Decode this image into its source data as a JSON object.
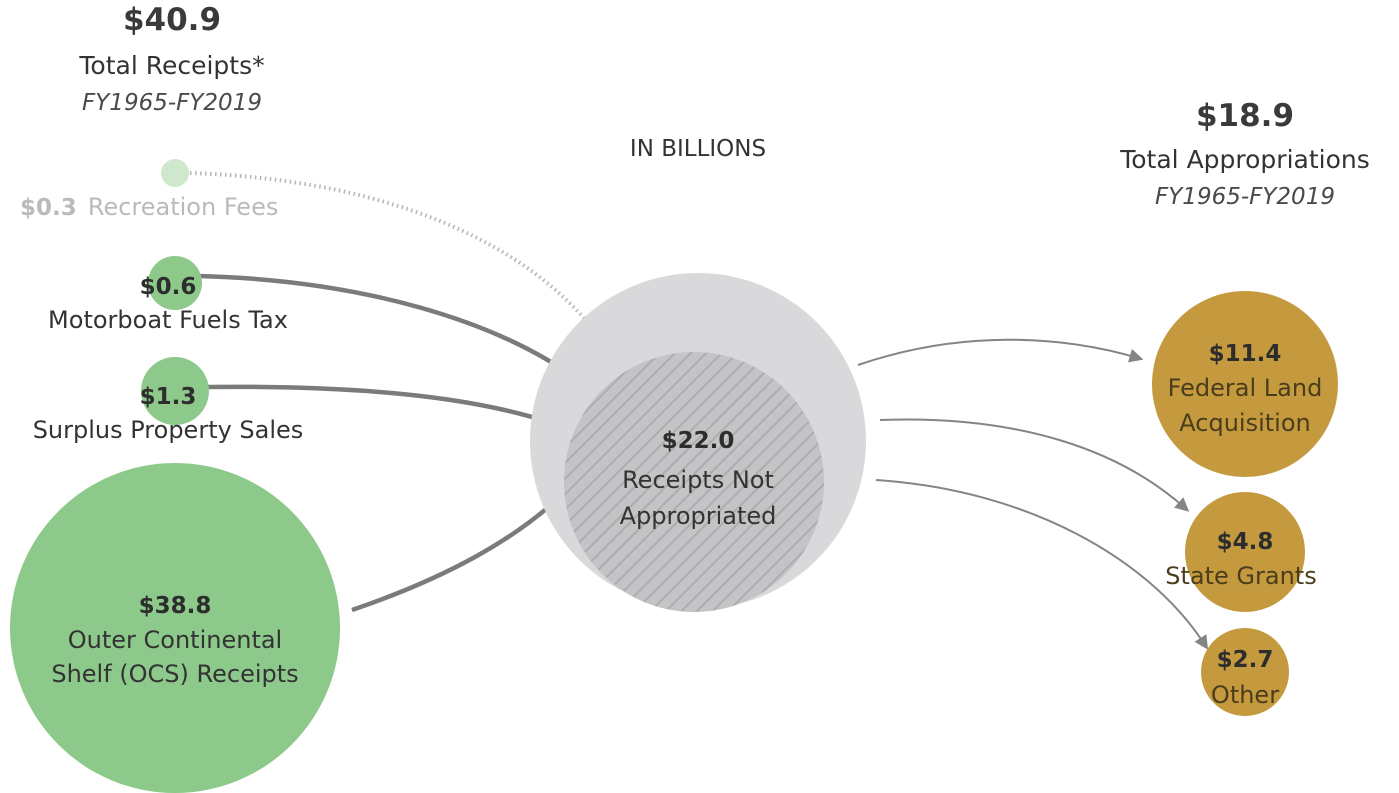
{
  "header": {
    "receipts_total": "$40.9",
    "receipts_title": "Total Receipts*",
    "receipts_period": "FY1965-FY2019",
    "units_label": "IN BILLIONS",
    "appropriations_total": "$18.9",
    "appropriations_title": "Total Appropriations",
    "appropriations_period": "FY1965-FY2019"
  },
  "sources": [
    {
      "value": "$0.3",
      "label": "Recreation Fees",
      "amount": 0.3
    },
    {
      "value": "$0.6",
      "label": "Motorboat Fuels Tax",
      "amount": 0.6
    },
    {
      "value": "$1.3",
      "label": "Surplus Property Sales",
      "amount": 1.3
    },
    {
      "value": "$38.8",
      "label_line1": "Outer Continental",
      "label_line2": "Shelf (OCS) Receipts",
      "amount": 38.8
    }
  ],
  "center": {
    "value": "$22.0",
    "label_line1": "Receipts Not",
    "label_line2": "Appropriated",
    "amount": 22.0
  },
  "destinations": [
    {
      "value": "$11.4",
      "label_line1": "Federal Land",
      "label_line2": "Acquisition",
      "amount": 11.4
    },
    {
      "value": "$4.8",
      "label": "State Grants",
      "amount": 4.8
    },
    {
      "value": "$2.7",
      "label": "Other",
      "amount": 2.7
    }
  ],
  "colors": {
    "source_green": "#8dc98a",
    "source_green_faded": "#cfe7cd",
    "center_outer": "#d9d9db",
    "center_inner": "#c4c4c6",
    "hatch": "#adadb0",
    "destination_gold": "#c59a3f",
    "arrow": "#7b7b7b"
  }
}
